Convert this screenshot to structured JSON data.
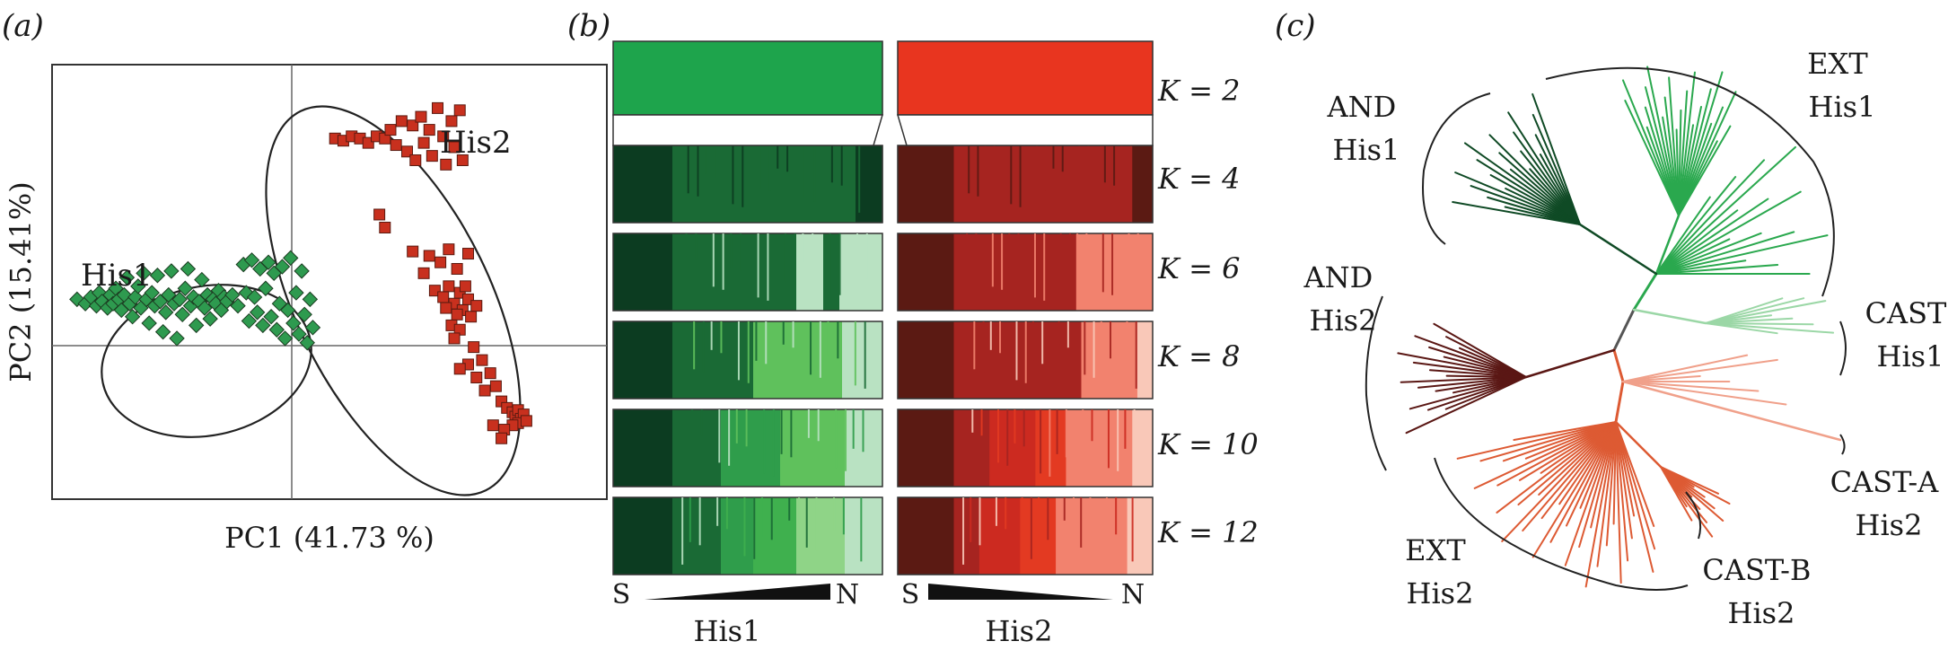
{
  "panels": {
    "a": {
      "label": "(a)"
    },
    "b": {
      "label": "(b)"
    },
    "c": {
      "label": "(c)"
    }
  },
  "colors": {
    "his1_green": "#2e9a4f",
    "his2_red": "#c8301e",
    "dark_green": "#0d3d20",
    "mid_green": "#196b35",
    "light_green": "#5fc15c",
    "pale_green": "#b9e2c2",
    "dark_red": "#5b1a13",
    "mid_red": "#a62420",
    "bright_red": "#e33a22",
    "salmon": "#f2826e",
    "pale_salmon": "#f9c8b8",
    "tree_dark_green": "#0f4a25",
    "tree_green": "#2aa84e",
    "tree_pale_green": "#9bd7a6",
    "tree_dark_red": "#5a1714",
    "tree_orange": "#dd5a33",
    "tree_salmon": "#f0a08a"
  },
  "chart_data": [
    {
      "type": "scatter",
      "panel": "a",
      "xlabel": "PC1 (41.73 %)",
      "ylabel": "PC2 (15.41%)",
      "xlim": [
        -1,
        1
      ],
      "ylim": [
        -1,
        1
      ],
      "grid": false,
      "series": [
        {
          "name": "His1",
          "marker": "diamond",
          "color": "#2e9a4f",
          "points": [
            [
              -0.91,
              -0.08
            ],
            [
              -0.88,
              -0.1
            ],
            [
              -0.86,
              -0.07
            ],
            [
              -0.84,
              -0.11
            ],
            [
              -0.83,
              -0.05
            ],
            [
              -0.82,
              -0.09
            ],
            [
              -0.8,
              -0.12
            ],
            [
              -0.79,
              -0.06
            ],
            [
              -0.78,
              -0.1
            ],
            [
              -0.77,
              -0.03
            ],
            [
              -0.76,
              -0.08
            ],
            [
              -0.75,
              -0.13
            ],
            [
              -0.74,
              -0.06
            ],
            [
              -0.73,
              0.02
            ],
            [
              -0.72,
              -0.1
            ],
            [
              -0.71,
              -0.16
            ],
            [
              -0.7,
              -0.07
            ],
            [
              -0.69,
              -0.02
            ],
            [
              -0.68,
              -0.12
            ],
            [
              -0.67,
              0.04
            ],
            [
              -0.66,
              -0.08
            ],
            [
              -0.65,
              -0.19
            ],
            [
              -0.64,
              -0.05
            ],
            [
              -0.63,
              -0.11
            ],
            [
              -0.62,
              0.03
            ],
            [
              -0.61,
              -0.09
            ],
            [
              -0.6,
              -0.23
            ],
            [
              -0.59,
              -0.14
            ],
            [
              -0.58,
              -0.06
            ],
            [
              -0.57,
              0.05
            ],
            [
              -0.56,
              -0.1
            ],
            [
              -0.55,
              -0.26
            ],
            [
              -0.54,
              -0.08
            ],
            [
              -0.53,
              -0.15
            ],
            [
              -0.52,
              -0.03
            ],
            [
              -0.51,
              0.06
            ],
            [
              -0.5,
              -0.11
            ],
            [
              -0.49,
              -0.07
            ],
            [
              -0.48,
              -0.2
            ],
            [
              -0.47,
              -0.09
            ],
            [
              -0.46,
              0.01
            ],
            [
              -0.45,
              -0.12
            ],
            [
              -0.44,
              -0.06
            ],
            [
              -0.43,
              -0.17
            ],
            [
              -0.42,
              -0.08
            ],
            [
              -0.41,
              -0.1
            ],
            [
              -0.4,
              -0.04
            ],
            [
              -0.39,
              -0.13
            ],
            [
              -0.38,
              -0.07
            ],
            [
              -0.37,
              -0.09
            ],
            [
              -0.35,
              -0.06
            ],
            [
              -0.33,
              -0.11
            ],
            [
              -0.31,
              0.08
            ],
            [
              -0.3,
              -0.05
            ],
            [
              -0.29,
              -0.18
            ],
            [
              -0.28,
              0.1
            ],
            [
              -0.27,
              -0.07
            ],
            [
              -0.26,
              -0.14
            ],
            [
              -0.25,
              0.06
            ],
            [
              -0.24,
              -0.2
            ],
            [
              -0.23,
              -0.03
            ],
            [
              -0.22,
              0.09
            ],
            [
              -0.21,
              -0.16
            ],
            [
              -0.2,
              0.04
            ],
            [
              -0.19,
              -0.22
            ],
            [
              -0.18,
              -0.1
            ],
            [
              -0.17,
              0.07
            ],
            [
              -0.16,
              -0.26
            ],
            [
              -0.15,
              -0.13
            ],
            [
              -0.14,
              0.11
            ],
            [
              -0.13,
              -0.19
            ],
            [
              -0.12,
              -0.05
            ],
            [
              -0.11,
              -0.24
            ],
            [
              -0.1,
              0.05
            ],
            [
              -0.09,
              -0.15
            ],
            [
              -0.08,
              -0.28
            ],
            [
              -0.07,
              -0.08
            ],
            [
              -0.06,
              -0.21
            ]
          ]
        },
        {
          "name": "His2",
          "marker": "square",
          "color": "#c8301e",
          "points": [
            [
              0.02,
              0.66
            ],
            [
              0.05,
              0.65
            ],
            [
              0.08,
              0.67
            ],
            [
              0.11,
              0.66
            ],
            [
              0.14,
              0.64
            ],
            [
              0.17,
              0.67
            ],
            [
              0.2,
              0.66
            ],
            [
              0.22,
              0.7
            ],
            [
              0.24,
              0.63
            ],
            [
              0.26,
              0.74
            ],
            [
              0.28,
              0.6
            ],
            [
              0.3,
              0.72
            ],
            [
              0.31,
              0.56
            ],
            [
              0.33,
              0.76
            ],
            [
              0.34,
              0.64
            ],
            [
              0.36,
              0.7
            ],
            [
              0.37,
              0.58
            ],
            [
              0.39,
              0.8
            ],
            [
              0.41,
              0.67
            ],
            [
              0.42,
              0.54
            ],
            [
              0.44,
              0.74
            ],
            [
              0.45,
              0.62
            ],
            [
              0.47,
              0.79
            ],
            [
              0.48,
              0.56
            ],
            [
              0.18,
              0.31
            ],
            [
              0.2,
              0.25
            ],
            [
              0.3,
              0.14
            ],
            [
              0.34,
              0.04
            ],
            [
              0.36,
              0.12
            ],
            [
              0.4,
              0.09
            ],
            [
              0.43,
              0.15
            ],
            [
              0.46,
              0.06
            ],
            [
              0.5,
              0.13
            ],
            [
              0.38,
              -0.04
            ],
            [
              0.41,
              -0.07
            ],
            [
              0.43,
              -0.02
            ],
            [
              0.45,
              -0.1
            ],
            [
              0.47,
              -0.05
            ],
            [
              0.48,
              -0.13
            ],
            [
              0.5,
              -0.08
            ],
            [
              0.51,
              -0.16
            ],
            [
              0.44,
              -0.2
            ],
            [
              0.49,
              -0.02
            ],
            [
              0.42,
              -0.12
            ],
            [
              0.46,
              -0.15
            ],
            [
              0.53,
              -0.11
            ],
            [
              0.47,
              -0.22
            ],
            [
              0.45,
              -0.26
            ],
            [
              0.52,
              -0.3
            ],
            [
              0.5,
              -0.38
            ],
            [
              0.55,
              -0.36
            ],
            [
              0.53,
              -0.44
            ],
            [
              0.58,
              -0.42
            ],
            [
              0.56,
              -0.5
            ],
            [
              0.6,
              -0.48
            ],
            [
              0.47,
              -0.4
            ],
            [
              0.62,
              -0.55
            ],
            [
              0.64,
              -0.58
            ],
            [
              0.66,
              -0.6
            ],
            [
              0.67,
              -0.62
            ],
            [
              0.68,
              -0.59
            ],
            [
              0.69,
              -0.63
            ],
            [
              0.7,
              -0.61
            ],
            [
              0.68,
              -0.65
            ],
            [
              0.71,
              -0.64
            ],
            [
              0.66,
              -0.66
            ],
            [
              0.63,
              -0.68
            ],
            [
              0.59,
              -0.66
            ],
            [
              0.62,
              -0.72
            ]
          ]
        }
      ],
      "annotations": [
        {
          "text": "His1"
        },
        {
          "text": "His2"
        }
      ]
    }
  ],
  "structure": {
    "k_labels": [
      "K = 2",
      "K = 4",
      "K = 6",
      "K = 8",
      "K = 10",
      "K = 12"
    ],
    "his1": {
      "rows": [
        [
          [
            "#1ea44c",
            1.0
          ]
        ],
        [
          [
            "#0c3c21",
            0.22
          ],
          [
            "#1a6a35",
            0.68
          ],
          [
            "#0c3c21",
            0.1
          ]
        ],
        [
          [
            "#0c3c21",
            0.22
          ],
          [
            "#1a6a35",
            0.46
          ],
          [
            "#b9e2c2",
            0.1
          ],
          [
            "#1a6a35",
            0.06
          ],
          [
            "#b9e2c2",
            0.16
          ]
        ],
        [
          [
            "#0c3c21",
            0.22
          ],
          [
            "#1a6a35",
            0.3
          ],
          [
            "#5fc15c",
            0.33
          ],
          [
            "#b9e2c2",
            0.15
          ]
        ],
        [
          [
            "#0c3c21",
            0.22
          ],
          [
            "#1a6a35",
            0.18
          ],
          [
            "#2f9d4b",
            0.22
          ],
          [
            "#5fc15c",
            0.24
          ],
          [
            "#b9e2c2",
            0.14
          ]
        ],
        [
          [
            "#0c3c21",
            0.22
          ],
          [
            "#1a6a35",
            0.18
          ],
          [
            "#2f9d4b",
            0.12
          ],
          [
            "#3fb04e",
            0.16
          ],
          [
            "#8fd487",
            0.18
          ],
          [
            "#b9e2c2",
            0.14
          ]
        ]
      ]
    },
    "his2": {
      "rows": [
        [
          [
            "#e8351f",
            1.0
          ]
        ],
        [
          [
            "#5b1a13",
            0.22
          ],
          [
            "#a62420",
            0.7
          ],
          [
            "#5b1a13",
            0.08
          ]
        ],
        [
          [
            "#5b1a13",
            0.22
          ],
          [
            "#a62420",
            0.48
          ],
          [
            "#f2826e",
            0.3
          ]
        ],
        [
          [
            "#5b1a13",
            0.22
          ],
          [
            "#a62420",
            0.5
          ],
          [
            "#f2826e",
            0.22
          ],
          [
            "#f9c8b8",
            0.06
          ]
        ],
        [
          [
            "#5b1a13",
            0.22
          ],
          [
            "#a62420",
            0.14
          ],
          [
            "#cc2a20",
            0.18
          ],
          [
            "#e33a22",
            0.12
          ],
          [
            "#f2826e",
            0.26
          ],
          [
            "#f9c8b8",
            0.08
          ]
        ],
        [
          [
            "#5b1a13",
            0.22
          ],
          [
            "#a62420",
            0.1
          ],
          [
            "#cc2a20",
            0.16
          ],
          [
            "#e33a22",
            0.14
          ],
          [
            "#f2826e",
            0.28
          ],
          [
            "#f9c8b8",
            0.1
          ]
        ]
      ]
    },
    "gradient_his1": {
      "left": "S",
      "right": "N",
      "label": "His1"
    },
    "gradient_his2": {
      "left": "S",
      "right": "N",
      "label": "His2"
    }
  },
  "tree": {
    "labels": [
      {
        "lines": [
          "EXT",
          "His1"
        ]
      },
      {
        "lines": [
          "AND",
          "His1"
        ]
      },
      {
        "lines": [
          "AND",
          "His2"
        ]
      },
      {
        "lines": [
          "CAST",
          "His1"
        ]
      },
      {
        "lines": [
          "CAST-A",
          "His2"
        ]
      },
      {
        "lines": [
          "CAST-B",
          "His2"
        ]
      },
      {
        "lines": [
          "EXT",
          "His2"
        ]
      }
    ]
  }
}
